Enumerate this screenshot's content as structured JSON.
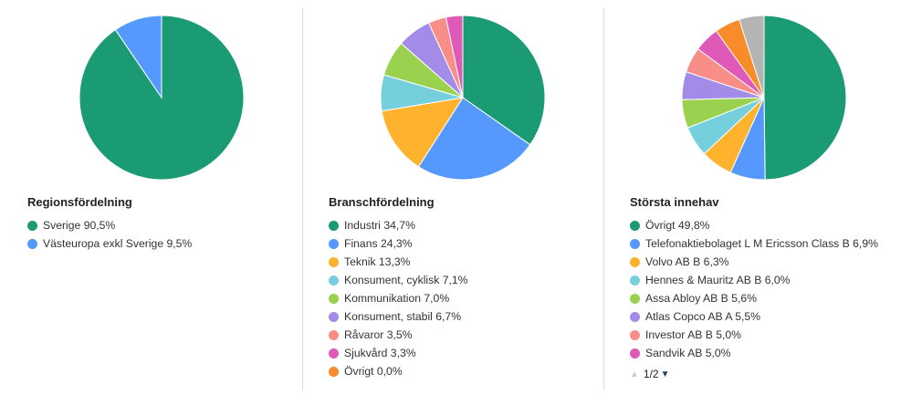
{
  "chart_data": [
    {
      "type": "pie",
      "title": "Regionsfördelning",
      "legend_position": "bottom",
      "slices": [
        {
          "label": "Sverige 90,5%",
          "value": 90.5,
          "color": "#1a9b73"
        },
        {
          "label": "Västeuropa exkl Sverige 9,5%",
          "value": 9.5,
          "color": "#5599ff"
        }
      ]
    },
    {
      "type": "pie",
      "title": "Branschfördelning",
      "legend_position": "bottom",
      "slices": [
        {
          "label": "Industri 34,7%",
          "value": 34.7,
          "color": "#1a9b73"
        },
        {
          "label": "Finans 24,3%",
          "value": 24.3,
          "color": "#5599ff"
        },
        {
          "label": "Teknik 13,3%",
          "value": 13.3,
          "color": "#ffb22e"
        },
        {
          "label": "Konsument, cyklisk 7,1%",
          "value": 7.1,
          "color": "#76cfdd"
        },
        {
          "label": "Kommunikation 7,0%",
          "value": 7.0,
          "color": "#9ad14f"
        },
        {
          "label": "Konsument, stabil 6,7%",
          "value": 6.7,
          "color": "#a28ce8"
        },
        {
          "label": "Råvaror 3,5%",
          "value": 3.5,
          "color": "#f98d88"
        },
        {
          "label": "Sjukvård 3,3%",
          "value": 3.3,
          "color": "#df5ab6"
        },
        {
          "label": "Övrigt 0,0%",
          "value": 0.0,
          "color": "#f98c2a"
        }
      ]
    },
    {
      "type": "pie",
      "title": "Största innehav",
      "legend_position": "bottom",
      "slices": [
        {
          "label": "Övrigt 49,8%",
          "value": 49.8,
          "color": "#1a9b73"
        },
        {
          "label": "Telefonaktiebolaget L M Ericsson Class B 6,9%",
          "value": 6.9,
          "color": "#5599ff"
        },
        {
          "label": "Volvo AB B 6,3%",
          "value": 6.3,
          "color": "#ffb22e"
        },
        {
          "label": "Hennes & Mauritz AB B 6,0%",
          "value": 6.0,
          "color": "#76cfdd"
        },
        {
          "label": "Assa Abloy AB B 5,6%",
          "value": 5.6,
          "color": "#9ad14f"
        },
        {
          "label": "Atlas Copco AB A 5,5%",
          "value": 5.5,
          "color": "#a28ce8"
        },
        {
          "label": "Investor AB B 5,0%",
          "value": 5.0,
          "color": "#f98d88"
        },
        {
          "label": "Sandvik AB 5,0%",
          "value": 5.0,
          "color": "#df5ab6"
        },
        {
          "label": "",
          "value": 5.0,
          "color": "#f98c2a"
        },
        {
          "label": "",
          "value": 4.9,
          "color": "#b4b4b4"
        }
      ],
      "legend_visible_count": 8,
      "pager": {
        "text": "1/2"
      }
    }
  ]
}
